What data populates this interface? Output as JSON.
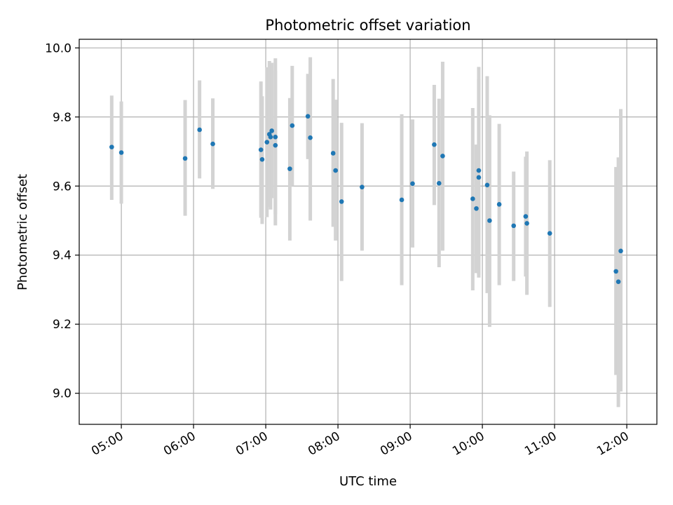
{
  "chart_data": {
    "type": "scatter",
    "title": "Photometric offset variation",
    "xlabel": "UTC time",
    "ylabel": "Photometric offset",
    "x_unit": "UTC time (HH:MM)",
    "xlim": [
      "04:25",
      "12:25"
    ],
    "ylim": [
      8.91,
      10.025
    ],
    "grid": true,
    "x_ticks": [
      "05:00",
      "06:00",
      "07:00",
      "08:00",
      "09:00",
      "10:00",
      "11:00",
      "12:00"
    ],
    "y_ticks": [
      "9.0",
      "9.2",
      "9.4",
      "9.6",
      "9.8",
      "10.0"
    ],
    "series": [
      {
        "marker_color": "#1f77b4",
        "errorbar_color": "#d3d3d3",
        "points": [
          {
            "x": "04:52",
            "y": 9.713,
            "lo": 9.56,
            "hi": 9.862
          },
          {
            "x": "05:00",
            "y": 9.697,
            "lo": 9.549,
            "hi": 9.845
          },
          {
            "x": "05:53",
            "y": 9.68,
            "lo": 9.514,
            "hi": 9.849
          },
          {
            "x": "06:05",
            "y": 9.763,
            "lo": 9.622,
            "hi": 9.906
          },
          {
            "x": "06:16",
            "y": 9.722,
            "lo": 9.592,
            "hi": 9.854
          },
          {
            "x": "06:56",
            "y": 9.705,
            "lo": 9.508,
            "hi": 9.903
          },
          {
            "x": "06:57",
            "y": 9.677,
            "lo": 9.49,
            "hi": 9.86
          },
          {
            "x": "07:01",
            "y": 9.727,
            "lo": 9.51,
            "hi": 9.944
          },
          {
            "x": "07:03",
            "y": 9.75,
            "lo": 9.54,
            "hi": 9.962
          },
          {
            "x": "07:04",
            "y": 9.742,
            "lo": 9.532,
            "hi": 9.952
          },
          {
            "x": "07:05",
            "y": 9.76,
            "lo": 9.565,
            "hi": 9.957
          },
          {
            "x": "07:08",
            "y": 9.742,
            "lo": 9.518,
            "hi": 9.97
          },
          {
            "x": "07:08",
            "y": 9.718,
            "lo": 9.486,
            "hi": 9.935
          },
          {
            "x": "07:20",
            "y": 9.65,
            "lo": 9.442,
            "hi": 9.855
          },
          {
            "x": "07:22",
            "y": 9.775,
            "lo": 9.6,
            "hi": 9.948
          },
          {
            "x": "07:35",
            "y": 9.802,
            "lo": 9.678,
            "hi": 9.925
          },
          {
            "x": "07:37",
            "y": 9.74,
            "lo": 9.5,
            "hi": 9.973
          },
          {
            "x": "07:56",
            "y": 9.695,
            "lo": 9.482,
            "hi": 9.91
          },
          {
            "x": "07:58",
            "y": 9.645,
            "lo": 9.442,
            "hi": 9.85
          },
          {
            "x": "08:03",
            "y": 9.555,
            "lo": 9.325,
            "hi": 9.783
          },
          {
            "x": "08:20",
            "y": 9.597,
            "lo": 9.413,
            "hi": 9.782
          },
          {
            "x": "08:53",
            "y": 9.56,
            "lo": 9.313,
            "hi": 9.808
          },
          {
            "x": "09:02",
            "y": 9.607,
            "lo": 9.422,
            "hi": 9.793
          },
          {
            "x": "09:20",
            "y": 9.72,
            "lo": 9.545,
            "hi": 9.893
          },
          {
            "x": "09:24",
            "y": 9.608,
            "lo": 9.365,
            "hi": 9.853
          },
          {
            "x": "09:27",
            "y": 9.687,
            "lo": 9.413,
            "hi": 9.96
          },
          {
            "x": "09:52",
            "y": 9.563,
            "lo": 9.298,
            "hi": 9.826
          },
          {
            "x": "09:55",
            "y": 9.535,
            "lo": 9.348,
            "hi": 9.72
          },
          {
            "x": "09:57",
            "y": 9.625,
            "lo": 9.335,
            "hi": 9.91
          },
          {
            "x": "09:57",
            "y": 9.645,
            "lo": 9.343,
            "hi": 9.945
          },
          {
            "x": "10:04",
            "y": 9.603,
            "lo": 9.29,
            "hi": 9.918
          },
          {
            "x": "10:06",
            "y": 9.5,
            "lo": 9.192,
            "hi": 9.805
          },
          {
            "x": "10:14",
            "y": 9.547,
            "lo": 9.313,
            "hi": 9.78
          },
          {
            "x": "10:26",
            "y": 9.485,
            "lo": 9.325,
            "hi": 9.642
          },
          {
            "x": "10:36",
            "y": 9.512,
            "lo": 9.338,
            "hi": 9.685
          },
          {
            "x": "10:37",
            "y": 9.492,
            "lo": 9.285,
            "hi": 9.7
          },
          {
            "x": "10:56",
            "y": 9.463,
            "lo": 9.25,
            "hi": 9.675
          },
          {
            "x": "11:51",
            "y": 9.353,
            "lo": 9.053,
            "hi": 9.655
          },
          {
            "x": "11:53",
            "y": 9.323,
            "lo": 8.96,
            "hi": 9.683
          },
          {
            "x": "11:55",
            "y": 9.412,
            "lo": 9.005,
            "hi": 9.823
          }
        ]
      }
    ]
  }
}
